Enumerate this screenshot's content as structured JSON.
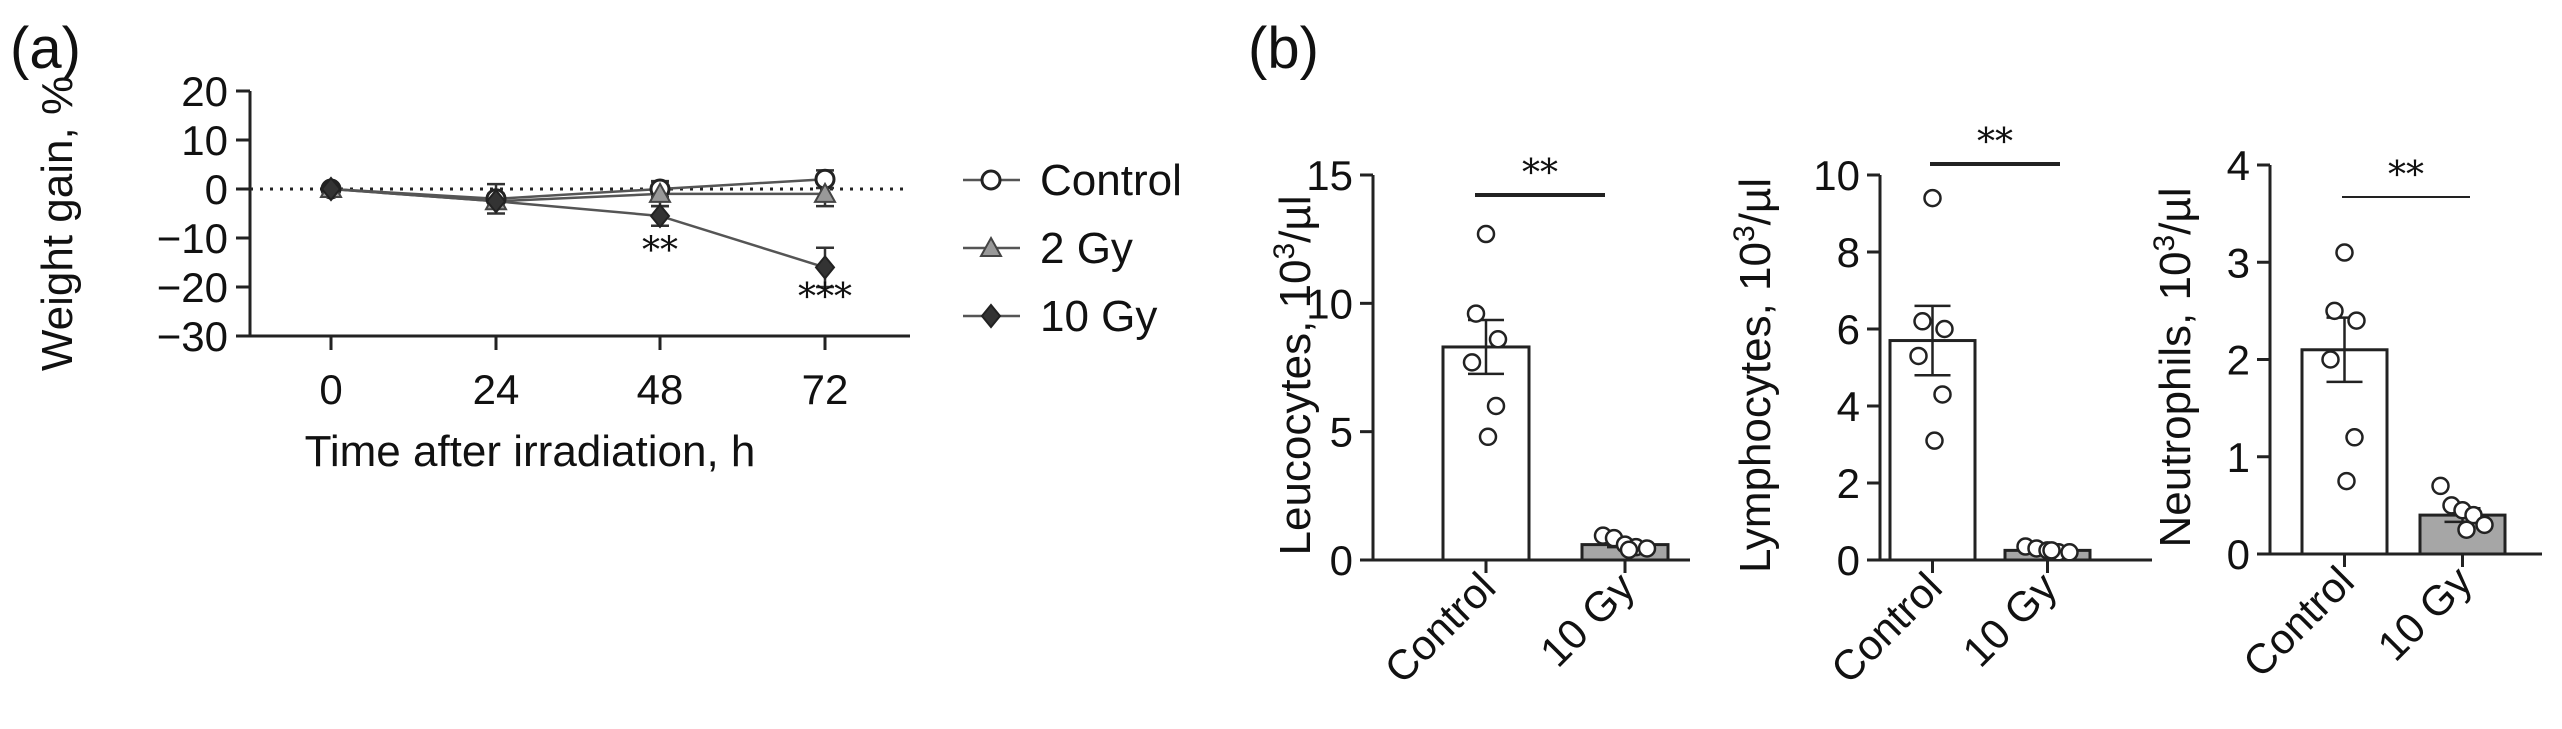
{
  "panels": {
    "a": "(a)",
    "b": "(b)"
  },
  "chart_data": [
    {
      "id": "a",
      "type": "line",
      "title": "",
      "xlabel": "Time after irradiation, h",
      "ylabel": "Weight gain, %",
      "x": [
        0,
        24,
        48,
        72
      ],
      "x_tick_labels": [
        "0",
        "24",
        "48",
        "72"
      ],
      "ylim": [
        -30,
        20
      ],
      "y_ticks": [
        20,
        10,
        0,
        -10,
        -20,
        -30
      ],
      "y_tick_labels": [
        "20",
        "10",
        "0",
        "−10",
        "−20",
        "−30"
      ],
      "reference_line": {
        "y": 0,
        "style": "dotted"
      },
      "legend_position": "right",
      "series": [
        {
          "name": "Control",
          "marker": "circle-open",
          "color": "#ffffff",
          "values": [
            0,
            -2,
            0,
            2
          ],
          "errors": [
            0.5,
            3,
            1.6,
            1.8
          ]
        },
        {
          "name": "2 Gy",
          "marker": "triangle-gray",
          "color": "#999999",
          "values": [
            0,
            -2.5,
            -1,
            -1
          ],
          "errors": [
            0.5,
            1.5,
            2.5,
            2.5
          ]
        },
        {
          "name": "10 Gy",
          "marker": "diamond-filled",
          "color": "#333333",
          "values": [
            0,
            -2.5,
            -5.5,
            -16
          ],
          "errors": [
            0.5,
            1,
            2,
            4
          ]
        }
      ],
      "annotations": [
        {
          "x": 48,
          "y": -15,
          "text": "**"
        },
        {
          "x": 72,
          "y": -24.5,
          "text": "***"
        }
      ]
    },
    {
      "id": "b1",
      "type": "bar",
      "categories": [
        "Control",
        "10 Gy"
      ],
      "values": [
        8.3,
        0.6
      ],
      "errors": [
        1.05,
        0.1
      ],
      "points": [
        [
          12.7,
          9.6,
          8.6,
          7.7,
          6.0,
          4.8
        ],
        [
          0.95,
          0.85,
          0.6,
          0.5,
          0.45,
          0.4
        ]
      ],
      "bar_colors": [
        "#ffffff",
        "#a6a6a6"
      ],
      "ylabel_text": "Leucocytes, 10",
      "ylabel_sup": "3",
      "ylabel_unit": "/µl",
      "ylim": [
        0,
        15
      ],
      "y_ticks": [
        0,
        5,
        10,
        15
      ],
      "y_tick_labels": [
        "0",
        "5",
        "10",
        "15"
      ],
      "significance": "**"
    },
    {
      "id": "b2",
      "type": "bar",
      "categories": [
        "Control",
        "10 Gy"
      ],
      "values": [
        5.7,
        0.25
      ],
      "errors": [
        0.9,
        0.05
      ],
      "points": [
        [
          9.4,
          6.2,
          6.0,
          5.3,
          4.3,
          3.1
        ],
        [
          0.35,
          0.3,
          0.25,
          0.2,
          0.2,
          0.25
        ]
      ],
      "bar_colors": [
        "#ffffff",
        "#a6a6a6"
      ],
      "ylabel_text": "Lymphocytes, 10",
      "ylabel_sup": "3",
      "ylabel_unit": "/µl",
      "ylim": [
        0,
        10
      ],
      "y_ticks": [
        0,
        2,
        4,
        6,
        8,
        10
      ],
      "y_tick_labels": [
        "0",
        "2",
        "4",
        "6",
        "8",
        "10"
      ],
      "significance": "**"
    },
    {
      "id": "b3",
      "type": "bar",
      "categories": [
        "Control",
        "10 Gy"
      ],
      "values": [
        2.1,
        0.4
      ],
      "errors": [
        0.33,
        0.07
      ],
      "points": [
        [
          3.1,
          2.5,
          2.4,
          2.0,
          1.2,
          0.75
        ],
        [
          0.7,
          0.5,
          0.45,
          0.4,
          0.3,
          0.25
        ]
      ],
      "bar_colors": [
        "#ffffff",
        "#a6a6a6"
      ],
      "ylabel_text": "Neutrophils, 10",
      "ylabel_sup": "3",
      "ylabel_unit": "/µl",
      "ylim": [
        0,
        4
      ],
      "y_ticks": [
        0,
        1,
        2,
        3,
        4
      ],
      "y_tick_labels": [
        "0",
        "1",
        "2",
        "3",
        "4"
      ],
      "significance": "**"
    }
  ]
}
